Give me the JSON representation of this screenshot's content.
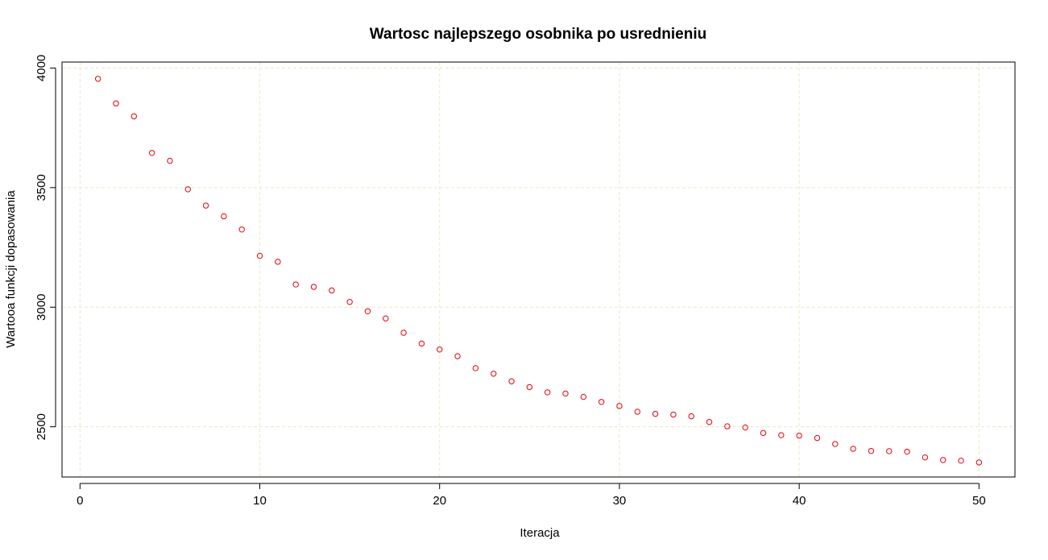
{
  "chart_data": {
    "type": "scatter",
    "title": "Wartosc najlepszego osobnika po usrednieniu",
    "xlabel": "Iteracja",
    "ylabel": "Wartooa funkcji dopasowania",
    "xlim": [
      -1,
      52
    ],
    "ylim": [
      2290,
      4025
    ],
    "x_ticks": [
      0,
      10,
      20,
      30,
      40,
      50
    ],
    "y_ticks": [
      2500,
      3000,
      3500,
      4000
    ],
    "grid": true,
    "legend": "none",
    "colors": {
      "points": "#e8000b",
      "grid": "#ebe6c8",
      "axis": "#000000",
      "background": "#ffffff"
    },
    "series": [
      {
        "x": [
          1,
          2,
          3,
          4,
          5,
          6,
          7,
          8,
          9,
          10,
          11,
          12,
          13,
          14,
          15,
          16,
          17,
          18,
          19,
          20,
          21,
          22,
          23,
          24,
          25,
          26,
          27,
          28,
          29,
          30,
          31,
          32,
          33,
          34,
          35,
          36,
          37,
          38,
          39,
          40,
          41,
          42,
          43,
          44,
          45,
          46,
          47,
          48,
          49,
          50
        ],
        "y": [
          3955,
          3852,
          3798,
          3645,
          3612,
          3493,
          3425,
          3380,
          3325,
          3215,
          3190,
          3095,
          3085,
          3070,
          3022,
          2983,
          2953,
          2893,
          2848,
          2823,
          2795,
          2745,
          2722,
          2690,
          2666,
          2644,
          2639,
          2625,
          2604,
          2587,
          2563,
          2554,
          2551,
          2544,
          2520,
          2502,
          2497,
          2474,
          2465,
          2463,
          2453,
          2428,
          2408,
          2399,
          2398,
          2396,
          2372,
          2361,
          2358,
          2351
        ]
      }
    ]
  }
}
